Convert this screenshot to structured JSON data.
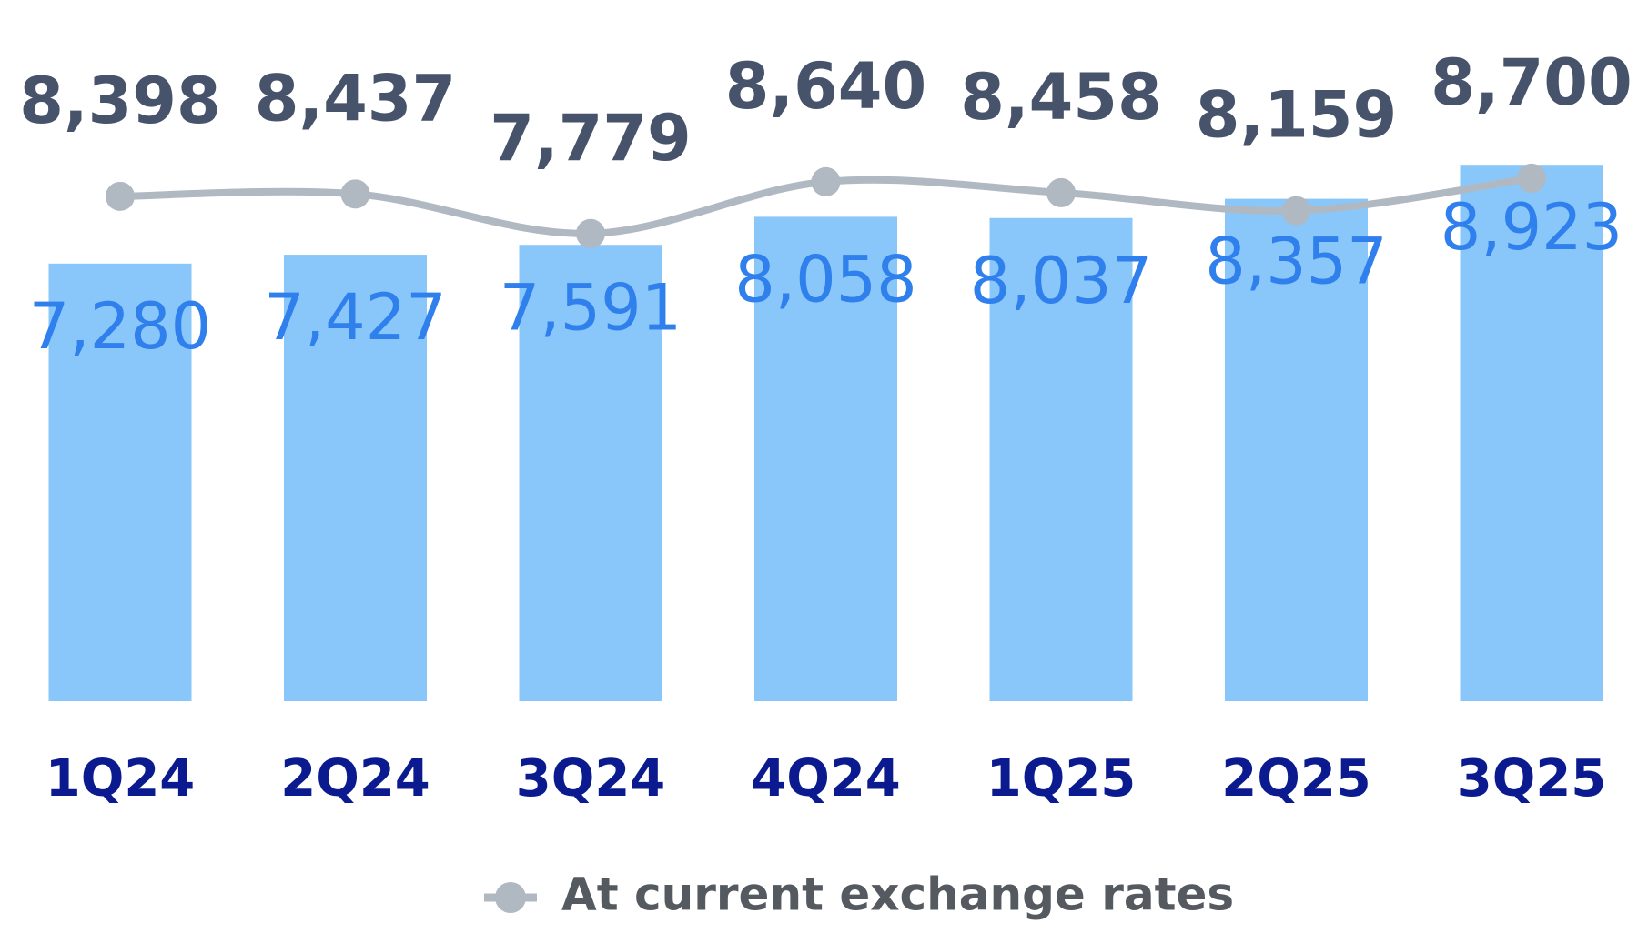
{
  "chart_data": {
    "type": "bar-line",
    "categories": [
      "1Q24",
      "2Q24",
      "3Q24",
      "4Q24",
      "1Q25",
      "2Q25",
      "3Q25"
    ],
    "series": [
      {
        "type": "bar",
        "color": "#89c7fa",
        "label_color": "#2f80ec",
        "values": [
          7280,
          7427,
          7591,
          8058,
          8037,
          8357,
          8923
        ],
        "value_labels": [
          "7,280",
          "7,427",
          "7,591",
          "8,058",
          "8,037",
          "8,357",
          "8,923"
        ]
      },
      {
        "type": "line",
        "name": "At current exchange rates",
        "color": "#b0b8c2",
        "label_color": "#46536b",
        "values": [
          8398,
          8437,
          7779,
          8640,
          8458,
          8159,
          8700
        ],
        "value_labels": [
          "8,398",
          "8,437",
          "7,779",
          "8,640",
          "8,458",
          "8,159",
          "8,700"
        ]
      }
    ],
    "ylim": [
      0,
      10000
    ],
    "legend": "bottom"
  }
}
